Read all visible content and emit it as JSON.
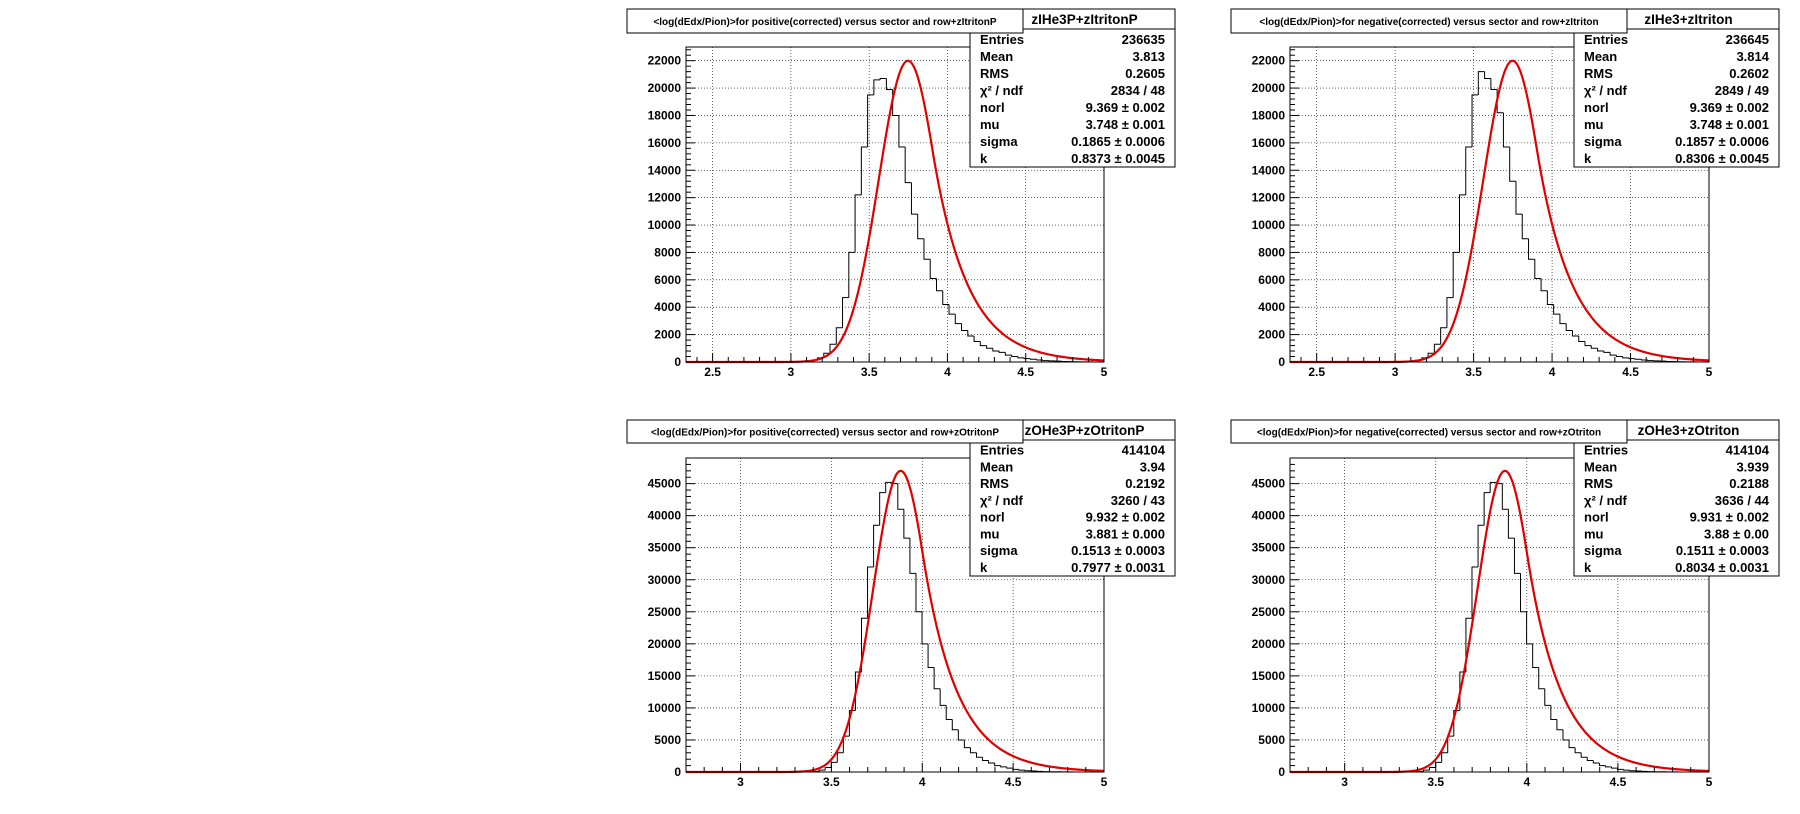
{
  "chart_data": [
    {
      "type": "bar",
      "title": "<log(dEdx/Pion)>for positive(corrected) versus sector and row+zItritonP",
      "stats_title": "zIHe3P+zItritonP",
      "x_range": [
        2.33,
        5.0
      ],
      "ylim": [
        0,
        23000
      ],
      "x_ticks": [
        2.5,
        3,
        3.5,
        4,
        4.5,
        5
      ],
      "x_tick_labels": [
        "2.5",
        "3",
        "3.5",
        "4",
        "4.5",
        "5"
      ],
      "y_ticks": [
        0,
        2000,
        4000,
        6000,
        8000,
        10000,
        12000,
        14000,
        16000,
        18000,
        20000,
        22000
      ],
      "y_tick_labels": [
        "0",
        "2000",
        "4000",
        "6000",
        "8000",
        "10000",
        "12000",
        "14000",
        "16000",
        "18000",
        "20000",
        "22000"
      ],
      "grid": true,
      "fit": {
        "mu": 3.748,
        "sigma": 0.1865,
        "k": 0.8373,
        "peak": 22000
      },
      "hist": {
        "start": 2.33,
        "width": 0.04,
        "values": [
          0,
          0,
          0,
          0,
          0,
          0,
          0,
          0,
          0,
          0,
          0,
          0,
          0,
          0,
          0,
          0,
          0,
          0,
          10,
          40,
          130,
          300,
          640,
          1300,
          2500,
          4700,
          8000,
          12200,
          15700,
          19500,
          20600,
          20700,
          19900,
          18000,
          15700,
          13100,
          10800,
          9000,
          7500,
          6100,
          5200,
          4200,
          3500,
          2800,
          2300,
          1900,
          1500,
          1200,
          1000,
          800,
          700,
          500,
          400,
          300,
          250,
          200,
          150,
          100,
          80,
          60,
          40,
          30,
          20,
          10,
          5,
          3,
          2
        ]
      },
      "stats": [
        {
          "label": "Entries",
          "value": "236635"
        },
        {
          "label": "Mean",
          "value": "3.813"
        },
        {
          "label": "RMS",
          "value": "0.2605"
        },
        {
          "label": "χ² / ndf",
          "value": "2834 / 48"
        },
        {
          "label": "norl",
          "value": "9.369 ± 0.002"
        },
        {
          "label": "mu",
          "value": "3.748 ± 0.001"
        },
        {
          "label": "sigma",
          "value": "0.1865 ± 0.0006"
        },
        {
          "label": "k",
          "value": "0.8373 ± 0.0045"
        }
      ]
    },
    {
      "type": "bar",
      "title": "<log(dEdx/Pion)>for negative(corrected) versus sector and row+zItriton",
      "stats_title": "zIHe3+zItriton",
      "x_range": [
        2.33,
        5.0
      ],
      "ylim": [
        0,
        23000
      ],
      "x_ticks": [
        2.5,
        3,
        3.5,
        4,
        4.5,
        5
      ],
      "x_tick_labels": [
        "2.5",
        "3",
        "3.5",
        "4",
        "4.5",
        "5"
      ],
      "y_ticks": [
        0,
        2000,
        4000,
        6000,
        8000,
        10000,
        12000,
        14000,
        16000,
        18000,
        20000,
        22000
      ],
      "y_tick_labels": [
        "0",
        "2000",
        "4000",
        "6000",
        "8000",
        "10000",
        "12000",
        "14000",
        "16000",
        "18000",
        "20000",
        "22000"
      ],
      "grid": true,
      "fit": {
        "mu": 3.748,
        "sigma": 0.1857,
        "k": 0.8306,
        "peak": 22000
      },
      "hist": {
        "start": 2.33,
        "width": 0.04,
        "values": [
          0,
          0,
          0,
          0,
          0,
          0,
          0,
          0,
          0,
          0,
          0,
          0,
          0,
          0,
          0,
          0,
          0,
          0,
          10,
          40,
          130,
          300,
          640,
          1300,
          2500,
          4700,
          8000,
          12200,
          15700,
          19500,
          21200,
          20700,
          19900,
          18200,
          15700,
          13200,
          10800,
          9000,
          7500,
          6100,
          5200,
          4200,
          3500,
          2800,
          2300,
          1900,
          1500,
          1200,
          1000,
          800,
          700,
          500,
          400,
          300,
          250,
          200,
          150,
          100,
          80,
          60,
          40,
          30,
          20,
          10,
          5,
          3,
          2
        ]
      },
      "stats": [
        {
          "label": "Entries",
          "value": "236645"
        },
        {
          "label": "Mean",
          "value": "3.814"
        },
        {
          "label": "RMS",
          "value": "0.2602"
        },
        {
          "label": "χ² / ndf",
          "value": "2849 / 49"
        },
        {
          "label": "norl",
          "value": "9.369 ± 0.002"
        },
        {
          "label": "mu",
          "value": "3.748 ± 0.001"
        },
        {
          "label": "sigma",
          "value": "0.1857 ± 0.0006"
        },
        {
          "label": "k",
          "value": "0.8306 ± 0.0045"
        }
      ]
    },
    {
      "type": "bar",
      "title": "<log(dEdx/Pion)>for positive(corrected) versus sector and row+zOtritonP",
      "stats_title": "zOHe3P+zOtritonP",
      "x_range": [
        2.7,
        5.0
      ],
      "ylim": [
        0,
        49000
      ],
      "x_ticks": [
        3,
        3.5,
        4,
        4.5,
        5
      ],
      "x_tick_labels": [
        "3",
        "3.5",
        "4",
        "4.5",
        "5"
      ],
      "y_ticks": [
        0,
        5000,
        10000,
        15000,
        20000,
        25000,
        30000,
        35000,
        40000,
        45000
      ],
      "y_tick_labels": [
        "0",
        "5000",
        "10000",
        "15000",
        "20000",
        "25000",
        "30000",
        "35000",
        "40000",
        "45000"
      ],
      "grid": true,
      "fit": {
        "mu": 3.881,
        "sigma": 0.1513,
        "k": 0.7977,
        "peak": 47000
      },
      "hist": {
        "start": 2.7,
        "width": 0.0333,
        "values": [
          0,
          0,
          0,
          0,
          0,
          0,
          0,
          0,
          0,
          0,
          0,
          0,
          0,
          0,
          0,
          0,
          0,
          0,
          0,
          10,
          30,
          100,
          300,
          700,
          1500,
          3000,
          5600,
          9600,
          15600,
          24000,
          32000,
          38500,
          43600,
          45200,
          45000,
          41000,
          36500,
          31000,
          25000,
          20000,
          16300,
          13000,
          10400,
          8200,
          6600,
          5000,
          3800,
          3000,
          2300,
          1800,
          1400,
          1000,
          800,
          600,
          400,
          300,
          200,
          150,
          100,
          60,
          40,
          30,
          20,
          10,
          5,
          3,
          2,
          1,
          0
        ]
      },
      "stats": [
        {
          "label": "Entries",
          "value": "414104"
        },
        {
          "label": "Mean",
          "value": "3.94"
        },
        {
          "label": "RMS",
          "value": "0.2192"
        },
        {
          "label": "χ² / ndf",
          "value": "3260 / 43"
        },
        {
          "label": "norl",
          "value": "9.932 ± 0.002"
        },
        {
          "label": "mu",
          "value": "3.881 ± 0.000"
        },
        {
          "label": "sigma",
          "value": "0.1513 ± 0.0003"
        },
        {
          "label": "k",
          "value": "0.7977 ± 0.0031"
        }
      ]
    },
    {
      "type": "bar",
      "title": "<log(dEdx/Pion)>for negative(corrected) versus sector and row+zOtriton",
      "stats_title": "zOHe3+zOtriton",
      "x_range": [
        2.7,
        5.0
      ],
      "ylim": [
        0,
        49000
      ],
      "x_ticks": [
        3,
        3.5,
        4,
        4.5,
        5
      ],
      "x_tick_labels": [
        "3",
        "3.5",
        "4",
        "4.5",
        "5"
      ],
      "y_ticks": [
        0,
        5000,
        10000,
        15000,
        20000,
        25000,
        30000,
        35000,
        40000,
        45000
      ],
      "y_tick_labels": [
        "0",
        "5000",
        "10000",
        "15000",
        "20000",
        "25000",
        "30000",
        "35000",
        "40000",
        "45000"
      ],
      "grid": true,
      "fit": {
        "mu": 3.88,
        "sigma": 0.1511,
        "k": 0.8034,
        "peak": 47000
      },
      "hist": {
        "start": 2.7,
        "width": 0.0333,
        "values": [
          0,
          0,
          0,
          0,
          0,
          0,
          0,
          0,
          0,
          0,
          0,
          0,
          0,
          0,
          0,
          0,
          0,
          0,
          0,
          10,
          30,
          100,
          300,
          700,
          1500,
          3000,
          5600,
          9600,
          15600,
          24000,
          32000,
          38500,
          43600,
          45200,
          45000,
          41000,
          36500,
          31000,
          25000,
          20000,
          16300,
          13000,
          10400,
          8200,
          6600,
          5000,
          3800,
          3000,
          2300,
          1800,
          1400,
          1000,
          800,
          600,
          400,
          300,
          200,
          150,
          100,
          60,
          40,
          30,
          20,
          10,
          5,
          3,
          2,
          1,
          0
        ]
      },
      "stats": [
        {
          "label": "Entries",
          "value": "414104"
        },
        {
          "label": "Mean",
          "value": "3.939"
        },
        {
          "label": "RMS",
          "value": "0.2188"
        },
        {
          "label": "χ² / ndf",
          "value": "3636 / 44"
        },
        {
          "label": "norl",
          "value": "9.931 ± 0.002"
        },
        {
          "label": "mu",
          "value": "3.88 ± 0.00"
        },
        {
          "label": "sigma",
          "value": "0.1511 ± 0.0003"
        },
        {
          "label": "k",
          "value": "0.8034 ± 0.0031"
        }
      ]
    }
  ]
}
